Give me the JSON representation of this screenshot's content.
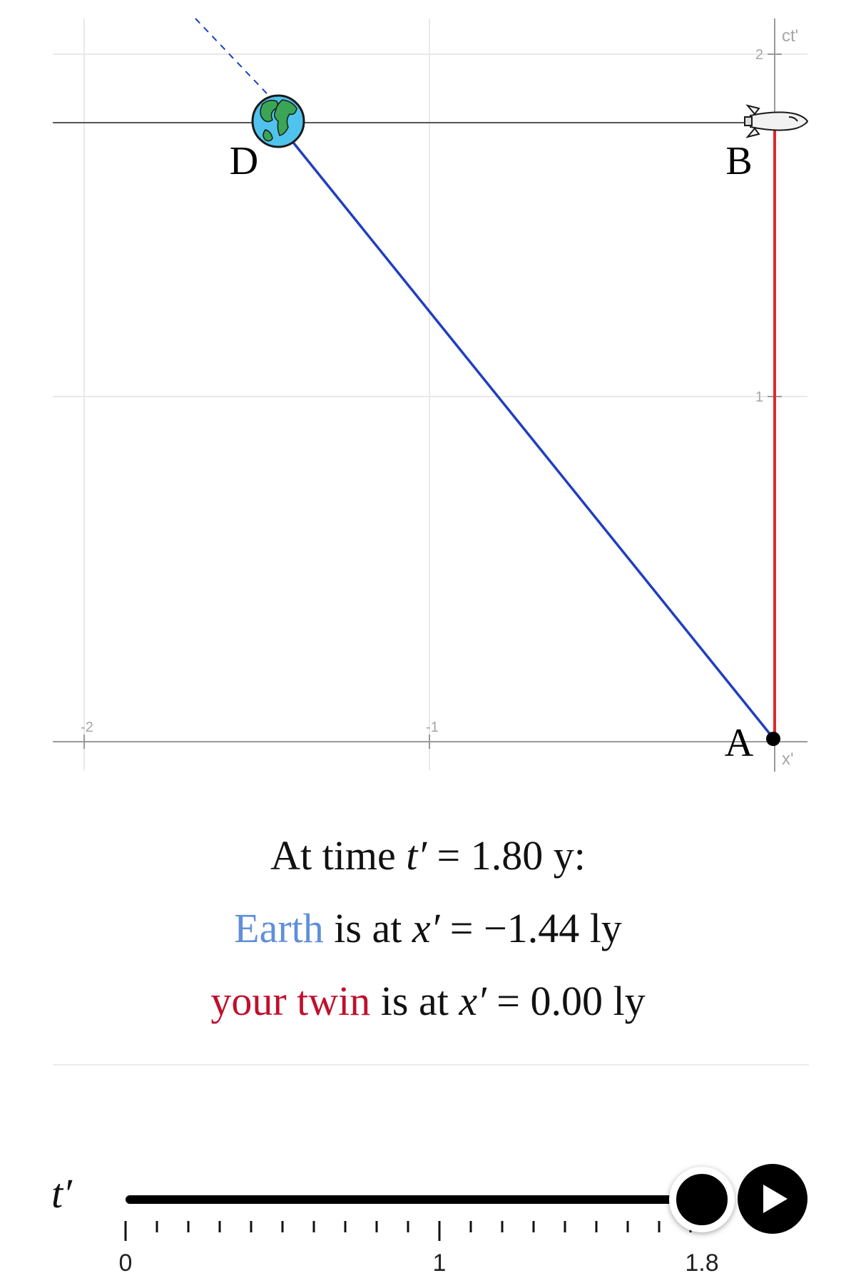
{
  "graph": {
    "axes": {
      "x_label": "x'",
      "y_label": "ct'"
    },
    "x_ticks": [
      "-2",
      "-1"
    ],
    "y_ticks": [
      "1",
      "2"
    ],
    "points": {
      "A": "A",
      "B": "B",
      "D": "D"
    },
    "colors": {
      "earth_line": "#1f3fbf",
      "twin_line": "#e0282e"
    }
  },
  "readout": {
    "line1_prefix": "At time",
    "t_symbol": "t′",
    "equals": "=",
    "t_value": "1.80 y:",
    "earth_word": "Earth",
    "is_at": "is at",
    "x_symbol": "x′",
    "earth_value": "−1.44 ly",
    "twin_word": "your twin",
    "twin_value": "0.00 ly"
  },
  "slider": {
    "label": "t′",
    "value": 1.8,
    "min": 0,
    "max": 2,
    "tick_labels": [
      "0",
      "1",
      "1.8"
    ],
    "play_icon": "play-icon"
  }
}
